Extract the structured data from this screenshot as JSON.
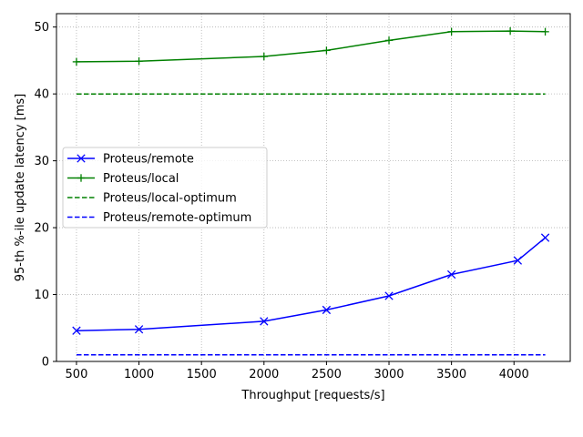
{
  "chart_data": {
    "type": "line",
    "xlabel": "Throughput [requests/s]",
    "ylabel": "95-th %-ile update latency [ms]",
    "xlim": [
      340,
      4450
    ],
    "ylim": [
      0,
      52
    ],
    "xticks": [
      500,
      1000,
      1500,
      2000,
      2500,
      3000,
      3500,
      4000
    ],
    "yticks": [
      0,
      10,
      20,
      30,
      40,
      50
    ],
    "grid": true,
    "legend_position": "center-left",
    "series": [
      {
        "name": "Proteus/remote",
        "color": "#0000ff",
        "style": "solid",
        "marker": "x",
        "x": [
          500,
          1000,
          2000,
          2500,
          3000,
          3500,
          4030,
          4250
        ],
        "y": [
          4.6,
          4.8,
          6.0,
          7.7,
          9.8,
          13.0,
          15.1,
          18.5
        ]
      },
      {
        "name": "Proteus/local",
        "color": "#008000",
        "style": "solid",
        "marker": "+",
        "x": [
          500,
          1000,
          2000,
          2500,
          3000,
          3500,
          3970,
          4250
        ],
        "y": [
          44.8,
          44.9,
          45.6,
          46.5,
          48.0,
          49.3,
          49.4,
          49.3
        ]
      },
      {
        "name": "Proteus/local-optimum",
        "color": "#008000",
        "style": "dashed",
        "marker": "none",
        "x": [
          500,
          4250
        ],
        "y": [
          40.0,
          40.0
        ]
      },
      {
        "name": "Proteus/remote-optimum",
        "color": "#0000ff",
        "style": "dashed",
        "marker": "none",
        "x": [
          500,
          4250
        ],
        "y": [
          1.0,
          1.0
        ]
      }
    ]
  }
}
